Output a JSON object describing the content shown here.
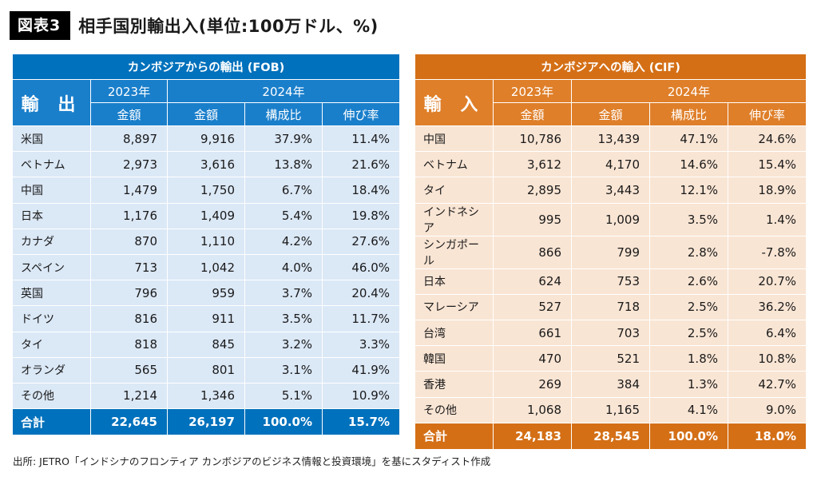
{
  "header": {
    "badge": "図表3",
    "title": "相手国別輸出入(単位:100万ドル、%)"
  },
  "export_table": {
    "caption": "カンボジアからの輸出 (FOB)",
    "corner_label": "輸 出",
    "years": [
      "2023年",
      "2024年"
    ],
    "subheaders": [
      "金額",
      "金額",
      "構成比",
      "伸び率"
    ],
    "rows": [
      [
        "米国",
        "8,897",
        "9,916",
        "37.9%",
        "11.4%"
      ],
      [
        "ベトナム",
        "2,973",
        "3,616",
        "13.8%",
        "21.6%"
      ],
      [
        "中国",
        "1,479",
        "1,750",
        "6.7%",
        "18.4%"
      ],
      [
        "日本",
        "1,176",
        "1,409",
        "5.4%",
        "19.8%"
      ],
      [
        "カナダ",
        "870",
        "1,110",
        "4.2%",
        "27.6%"
      ],
      [
        "スペイン",
        "713",
        "1,042",
        "4.0%",
        "46.0%"
      ],
      [
        "英国",
        "796",
        "959",
        "3.7%",
        "20.4%"
      ],
      [
        "ドイツ",
        "816",
        "911",
        "3.5%",
        "11.7%"
      ],
      [
        "タイ",
        "818",
        "845",
        "3.2%",
        "3.3%"
      ],
      [
        "オランダ",
        "565",
        "801",
        "3.1%",
        "41.9%"
      ],
      [
        "その他",
        "1,214",
        "1,346",
        "5.1%",
        "10.9%"
      ]
    ],
    "total": [
      "合計",
      "22,645",
      "26,197",
      "100.0%",
      "15.7%"
    ]
  },
  "import_table": {
    "caption": "カンボジアへの輸入 (CIF)",
    "corner_label": "輸 入",
    "years": [
      "2023年",
      "2024年"
    ],
    "subheaders": [
      "金額",
      "金額",
      "構成比",
      "伸び率"
    ],
    "rows": [
      [
        "中国",
        "10,786",
        "13,439",
        "47.1%",
        "24.6%"
      ],
      [
        "ベトナム",
        "3,612",
        "4,170",
        "14.6%",
        "15.4%"
      ],
      [
        "タイ",
        "2,895",
        "3,443",
        "12.1%",
        "18.9%"
      ],
      [
        "インドネシア",
        "995",
        "1,009",
        "3.5%",
        "1.4%"
      ],
      [
        "シンガポール",
        "866",
        "799",
        "2.8%",
        "-7.8%"
      ],
      [
        "日本",
        "624",
        "753",
        "2.6%",
        "20.7%"
      ],
      [
        "マレーシア",
        "527",
        "718",
        "2.5%",
        "36.2%"
      ],
      [
        "台湾",
        "661",
        "703",
        "2.5%",
        "6.4%"
      ],
      [
        "韓国",
        "470",
        "521",
        "1.8%",
        "10.8%"
      ],
      [
        "香港",
        "269",
        "384",
        "1.3%",
        "42.7%"
      ],
      [
        "その他",
        "1,068",
        "1,165",
        "4.1%",
        "9.0%"
      ]
    ],
    "total": [
      "合計",
      "24,183",
      "28,545",
      "100.0%",
      "18.0%"
    ]
  },
  "source": "出所: JETRO「インドシナのフロンティア カンボジアのビジネス情報と投資環境」を基にスタディスト作成",
  "colors": {
    "export_accent": "#0071bc",
    "import_accent": "#d46f16",
    "export_row": "#dbe8f6",
    "import_row": "#f9e5d4"
  }
}
